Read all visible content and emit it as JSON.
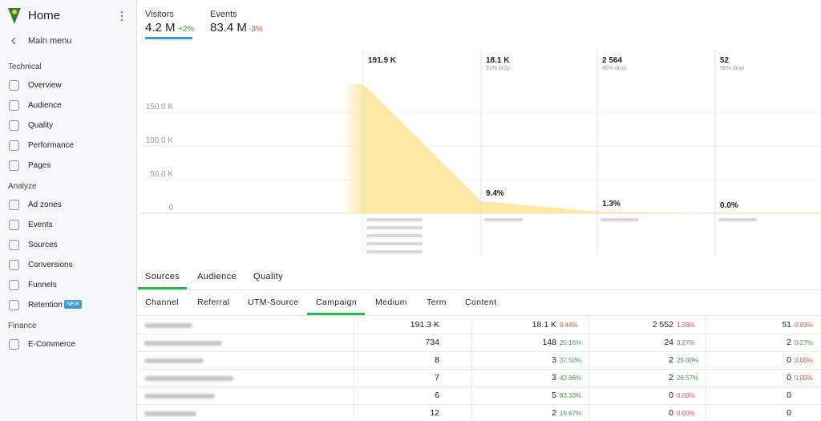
{
  "sidebar": {
    "title": "Home",
    "back": "Main menu",
    "sections": [
      {
        "heading": "Technical",
        "items": [
          {
            "label": "Overview"
          },
          {
            "label": "Audience"
          },
          {
            "label": "Quality"
          },
          {
            "label": "Performance"
          },
          {
            "label": "Pages"
          }
        ]
      },
      {
        "heading": "Analyze",
        "items": [
          {
            "label": "Ad zones"
          },
          {
            "label": "Events"
          },
          {
            "label": "Sources"
          },
          {
            "label": "Conversions"
          },
          {
            "label": "Funnels"
          },
          {
            "label": "Retention",
            "badge": "NEW"
          }
        ]
      },
      {
        "heading": "Finance",
        "items": [
          {
            "label": "E-Commerce"
          }
        ]
      }
    ]
  },
  "metrics": [
    {
      "label": "Visitors",
      "value": "4.2 M",
      "change": "+2%",
      "trend": "up",
      "active": true
    },
    {
      "label": "Events",
      "value": "83.4 M",
      "change": "-3%",
      "trend": "down",
      "active": false
    }
  ],
  "funnel": {
    "ylim": [
      0,
      250000
    ],
    "yticks": [
      0,
      {
        "value": 50000,
        "label": "50.0 K"
      },
      {
        "value": 100000,
        "label": "100.0 K"
      },
      {
        "value": 150000,
        "label": "150.0 K"
      }
    ],
    "color": "#fde9a6",
    "steps": [
      {
        "value": 191900,
        "label": "191.9 K"
      },
      {
        "value": 18100,
        "label": "18.1 K",
        "drop": "91% drop",
        "conversion": "9.4%"
      },
      {
        "value": 2564,
        "label": "2 564",
        "drop": "86% drop",
        "conversion": "1.3%"
      },
      {
        "value": 52,
        "label": "52",
        "drop": "98% drop",
        "conversion": "0.0%"
      }
    ]
  },
  "tabs": {
    "items": [
      "Sources",
      "Audience",
      "Quality"
    ],
    "active": 0
  },
  "subtabs": {
    "items": [
      "Channel",
      "Referral",
      "UTM-Source",
      "Campaign",
      "Medium",
      "Term",
      "Content"
    ],
    "active": 3
  },
  "table": {
    "rows": [
      {
        "total": "191.3 K",
        "steps": [
          {
            "count": "18.1 K",
            "pct": "9.44%",
            "trend": "down"
          },
          {
            "count": "2 552",
            "pct": "1.33%",
            "trend": "down"
          },
          {
            "count": "51",
            "pct": "0.03%",
            "trend": "down"
          }
        ]
      },
      {
        "total": "734",
        "steps": [
          {
            "count": "148",
            "pct": "20.16%",
            "trend": "up"
          },
          {
            "count": "24",
            "pct": "3.27%",
            "trend": "up"
          },
          {
            "count": "2",
            "pct": "0.27%",
            "trend": "up"
          }
        ]
      },
      {
        "total": "8",
        "steps": [
          {
            "count": "3",
            "pct": "37.50%",
            "trend": "up"
          },
          {
            "count": "2",
            "pct": "25.00%",
            "trend": "up"
          },
          {
            "count": "0",
            "pct": "0.00%",
            "trend": "down"
          }
        ]
      },
      {
        "total": "7",
        "steps": [
          {
            "count": "3",
            "pct": "42.86%",
            "trend": "up"
          },
          {
            "count": "2",
            "pct": "28.57%",
            "trend": "up"
          },
          {
            "count": "0",
            "pct": "0.00%",
            "trend": "down"
          }
        ]
      },
      {
        "total": "6",
        "steps": [
          {
            "count": "5",
            "pct": "83.33%",
            "trend": "up"
          },
          {
            "count": "0",
            "pct": "0.00%",
            "trend": "down"
          },
          {
            "count": "0"
          }
        ]
      },
      {
        "total": "12",
        "steps": [
          {
            "count": "2",
            "pct": "16.67%",
            "trend": "up"
          },
          {
            "count": "0",
            "pct": "0.00%",
            "trend": "down"
          },
          {
            "count": "0"
          }
        ]
      }
    ]
  }
}
